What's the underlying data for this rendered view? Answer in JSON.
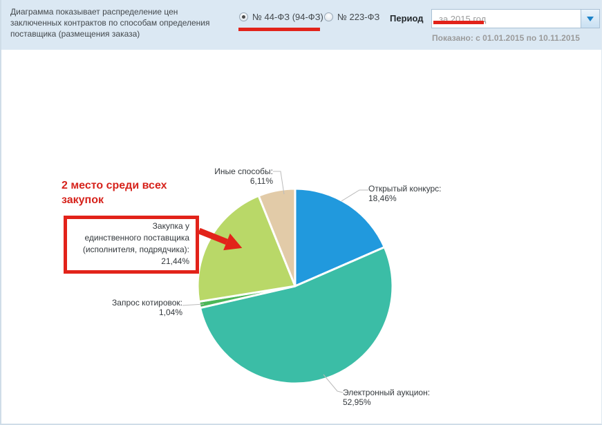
{
  "header": {
    "description": "Диаграмма показывает распределение цен заключенных контрактов по способам определения поставщика (размещения заказа)",
    "law_filter": {
      "options": [
        {
          "label": "№ 44-ФЗ (94-ФЗ)",
          "selected": true
        },
        {
          "label": "№ 223-ФЗ",
          "selected": false
        }
      ]
    },
    "period": {
      "label": "Период",
      "value": "за 2015 год"
    },
    "shown": "Показано: с 01.01.2015 по 10.11.2015"
  },
  "annotations": {
    "rank_note": "2 место среди всех закупок",
    "highlight_color": "#e2231a"
  },
  "chart_data": {
    "type": "pie",
    "title": "",
    "categories": [
      "Открытый конкурс",
      "Электронный аукцион",
      "Запрос котировок",
      "Закупка у единственного поставщика (исполнителя, подрядчика)",
      "Иные способы"
    ],
    "values": [
      18.46,
      52.95,
      1.04,
      21.44,
      6.11
    ],
    "value_labels": [
      "18,46%",
      "52,95%",
      "1,04%",
      "21,44%",
      "6,11%"
    ],
    "colors": [
      "#2199dd",
      "#3bbda6",
      "#4bb757",
      "#b9d868",
      "#e2cba8"
    ],
    "start_angle_deg": 0,
    "direction": "clockwise",
    "legend": "none",
    "callouts": [
      {
        "name": "Открытый конкурс:",
        "pct": "18,46%"
      },
      {
        "name": "Электронный аукцион:",
        "pct": "52,95%"
      },
      {
        "name": "Запрос котировок:",
        "pct": "1,04%"
      },
      {
        "name": "Иные способы:",
        "pct": "6,11%"
      }
    ],
    "boxed_callout": {
      "l1": "Закупка у",
      "l2": "единственного поставщика",
      "l3": "(исполнителя, подрядчика):",
      "l4": "21,44%"
    }
  }
}
